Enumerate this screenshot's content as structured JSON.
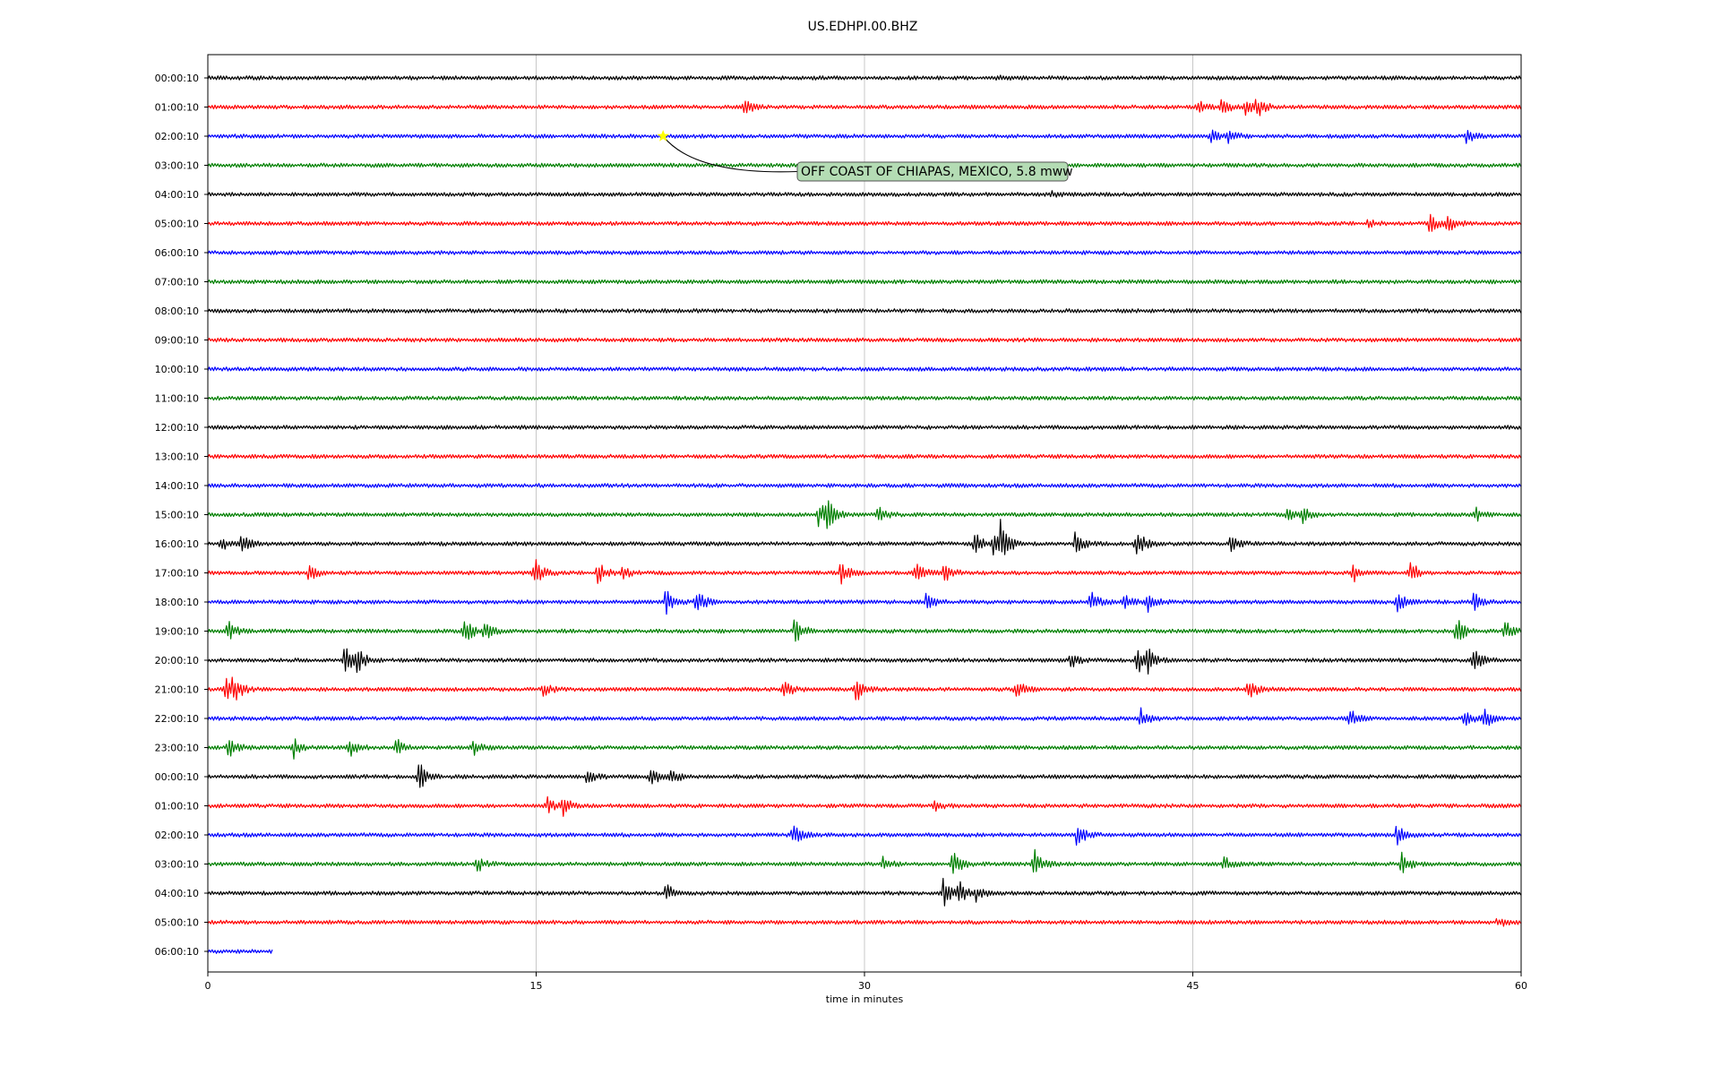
{
  "chart_data": {
    "type": "line",
    "title": "US.EDHPI.00.BHZ",
    "xlabel": "time in minutes",
    "x_ticks": [
      "0",
      "15",
      "30",
      "45",
      "60"
    ],
    "xlim": [
      0,
      60
    ],
    "grid": "vertical",
    "colors": [
      "#000000",
      "#ff0000",
      "#0000ff",
      "#008000"
    ],
    "rows": [
      {
        "label": "00:00:10",
        "end": 60,
        "events": [
          {
            "t": 36,
            "a": 3
          }
        ]
      },
      {
        "label": "01:00:10",
        "end": 60,
        "events": [
          {
            "t": 24.5,
            "a": 9
          },
          {
            "t": 45.2,
            "a": 8
          },
          {
            "t": 46.3,
            "a": 9
          },
          {
            "t": 47.4,
            "a": 8
          },
          {
            "t": 47.9,
            "a": 11
          }
        ]
      },
      {
        "label": "02:00:10",
        "end": 60,
        "events": [
          {
            "t": 45.8,
            "a": 8
          },
          {
            "t": 46.6,
            "a": 9
          },
          {
            "t": 57.5,
            "a": 7
          }
        ]
      },
      {
        "label": "03:00:10",
        "end": 60,
        "events": []
      },
      {
        "label": "04:00:10",
        "end": 60,
        "events": [
          {
            "t": 38.5,
            "a": 3
          }
        ]
      },
      {
        "label": "05:00:10",
        "end": 60,
        "events": [
          {
            "t": 53,
            "a": 4
          },
          {
            "t": 55.8,
            "a": 10
          },
          {
            "t": 56.6,
            "a": 12
          }
        ]
      },
      {
        "label": "06:00:10",
        "end": 60,
        "events": []
      },
      {
        "label": "07:00:10",
        "end": 60,
        "events": []
      },
      {
        "label": "08:00:10",
        "end": 60,
        "events": []
      },
      {
        "label": "09:00:10",
        "end": 60,
        "events": []
      },
      {
        "label": "10:00:10",
        "end": 60,
        "events": []
      },
      {
        "label": "11:00:10",
        "end": 60,
        "events": []
      },
      {
        "label": "12:00:10",
        "end": 60,
        "events": []
      },
      {
        "label": "13:00:10",
        "end": 60,
        "events": []
      },
      {
        "label": "14:00:10",
        "end": 60,
        "events": []
      },
      {
        "label": "15:00:10",
        "end": 60,
        "events": [
          {
            "t": 27.9,
            "a": 14
          },
          {
            "t": 28.2,
            "a": 20
          },
          {
            "t": 30.6,
            "a": 9
          },
          {
            "t": 49.3,
            "a": 8
          },
          {
            "t": 50,
            "a": 10
          },
          {
            "t": 57.9,
            "a": 8
          }
        ]
      },
      {
        "label": "16:00:10",
        "end": 60,
        "events": [
          {
            "t": 0.6,
            "a": 8
          },
          {
            "t": 1.5,
            "a": 11
          },
          {
            "t": 35,
            "a": 14
          },
          {
            "t": 35.9,
            "a": 16
          },
          {
            "t": 36.2,
            "a": 22
          },
          {
            "t": 39.6,
            "a": 14
          },
          {
            "t": 42.4,
            "a": 18
          },
          {
            "t": 46.7,
            "a": 10
          }
        ]
      },
      {
        "label": "17:00:10",
        "end": 60,
        "events": [
          {
            "t": 4.6,
            "a": 9
          },
          {
            "t": 14.9,
            "a": 18
          },
          {
            "t": 17.8,
            "a": 13
          },
          {
            "t": 18.9,
            "a": 8
          },
          {
            "t": 28.9,
            "a": 13
          },
          {
            "t": 32.3,
            "a": 14
          },
          {
            "t": 33.6,
            "a": 12
          },
          {
            "t": 52.3,
            "a": 11
          },
          {
            "t": 54.9,
            "a": 15
          }
        ]
      },
      {
        "label": "18:00:10",
        "end": 60,
        "events": [
          {
            "t": 20.9,
            "a": 14
          },
          {
            "t": 22.3,
            "a": 16
          },
          {
            "t": 32.8,
            "a": 12
          },
          {
            "t": 40.3,
            "a": 14
          },
          {
            "t": 41.8,
            "a": 9
          },
          {
            "t": 42.9,
            "a": 12
          },
          {
            "t": 54.3,
            "a": 12
          },
          {
            "t": 57.8,
            "a": 11
          }
        ]
      },
      {
        "label": "19:00:10",
        "end": 60,
        "events": [
          {
            "t": 0.9,
            "a": 13
          },
          {
            "t": 11.7,
            "a": 16
          },
          {
            "t": 12.6,
            "a": 11
          },
          {
            "t": 26.8,
            "a": 17
          },
          {
            "t": 57,
            "a": 18
          },
          {
            "t": 59.2,
            "a": 13
          }
        ]
      },
      {
        "label": "20:00:10",
        "end": 60,
        "events": [
          {
            "t": 6.2,
            "a": 18
          },
          {
            "t": 6.8,
            "a": 13
          },
          {
            "t": 39.4,
            "a": 10
          },
          {
            "t": 42.4,
            "a": 20
          },
          {
            "t": 42.9,
            "a": 14
          },
          {
            "t": 57.8,
            "a": 14
          }
        ]
      },
      {
        "label": "21:00:10",
        "end": 60,
        "events": [
          {
            "t": 0.8,
            "a": 13
          },
          {
            "t": 1.1,
            "a": 16
          },
          {
            "t": 15.3,
            "a": 9
          },
          {
            "t": 26.3,
            "a": 12
          },
          {
            "t": 29.6,
            "a": 14
          },
          {
            "t": 36.9,
            "a": 13
          },
          {
            "t": 47.5,
            "a": 15
          }
        ]
      },
      {
        "label": "22:00:10",
        "end": 60,
        "events": [
          {
            "t": 42.6,
            "a": 11
          },
          {
            "t": 52.1,
            "a": 12
          },
          {
            "t": 57.4,
            "a": 11
          },
          {
            "t": 58.3,
            "a": 16
          }
        ]
      },
      {
        "label": "23:00:10",
        "end": 60,
        "events": [
          {
            "t": 0.9,
            "a": 15
          },
          {
            "t": 3.9,
            "a": 12
          },
          {
            "t": 6.4,
            "a": 12
          },
          {
            "t": 8.6,
            "a": 10
          },
          {
            "t": 12.1,
            "a": 11
          }
        ]
      },
      {
        "label": "00:00:10",
        "end": 60,
        "events": [
          {
            "t": 9.6,
            "a": 18
          },
          {
            "t": 17.3,
            "a": 10
          },
          {
            "t": 20.2,
            "a": 12
          },
          {
            "t": 21.1,
            "a": 11
          }
        ]
      },
      {
        "label": "01:00:10",
        "end": 60,
        "events": [
          {
            "t": 15.5,
            "a": 9
          },
          {
            "t": 16.2,
            "a": 10
          },
          {
            "t": 33.2,
            "a": 5
          }
        ]
      },
      {
        "label": "02:00:10",
        "end": 60,
        "events": [
          {
            "t": 26.7,
            "a": 13
          },
          {
            "t": 39.7,
            "a": 16
          },
          {
            "t": 54.3,
            "a": 11
          }
        ]
      },
      {
        "label": "03:00:10",
        "end": 60,
        "events": [
          {
            "t": 12.3,
            "a": 9
          },
          {
            "t": 30.8,
            "a": 8
          },
          {
            "t": 34,
            "a": 16
          },
          {
            "t": 37.7,
            "a": 19
          },
          {
            "t": 46.4,
            "a": 8
          },
          {
            "t": 54.5,
            "a": 13
          }
        ]
      },
      {
        "label": "04:00:10",
        "end": 60,
        "events": [
          {
            "t": 20.9,
            "a": 11
          },
          {
            "t": 33.6,
            "a": 18
          },
          {
            "t": 34.3,
            "a": 13
          },
          {
            "t": 35.1,
            "a": 8
          }
        ]
      },
      {
        "label": "05:00:10",
        "end": 60,
        "events": [
          {
            "t": 58.9,
            "a": 6
          }
        ]
      },
      {
        "label": "06:00:10",
        "end": 3,
        "events": []
      }
    ],
    "annotations": [
      {
        "row": 2,
        "t": 20.8,
        "marker": "star",
        "marker_color": "#ffff00",
        "text": "OFF COAST OF CHIAPAS, MEXICO, 5.8 mww",
        "box_color": "#b4dcb4"
      }
    ]
  }
}
